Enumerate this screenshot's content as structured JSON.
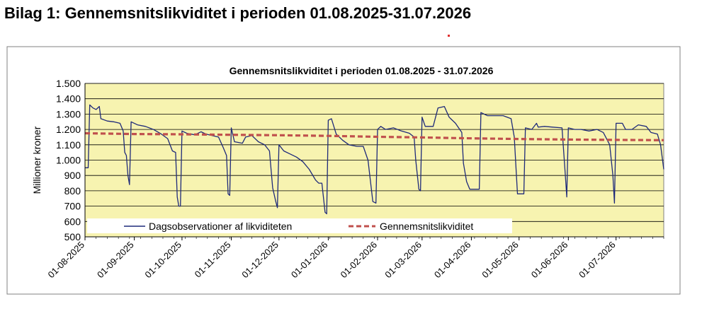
{
  "page": {
    "heading": "Bilag 1: Gennemsnitslikviditet i perioden 01.08.2025-31.07.2026"
  },
  "colors": {
    "plot_background": "#f7f3b0",
    "daily_line": "#1f2a7a",
    "average_line": "#c0504d",
    "frame": "#808080"
  },
  "chart_data": {
    "type": "line",
    "title": "Gennemsnitslikviditet i perioden 01.08.2025 - 31.07.2026",
    "xlabel": "",
    "ylabel": "Millioner kroner",
    "ylim": [
      500,
      1500
    ],
    "ytick_step": 100,
    "ytick_labels": [
      "500",
      "600",
      "700",
      "800",
      "900",
      "1.000",
      "1.100",
      "1.200",
      "1.300",
      "1.400",
      "1.500"
    ],
    "xlim": [
      "2025-08-01",
      "2026-07-31"
    ],
    "xtick_labels": [
      "01-08-2025",
      "01-09-2025",
      "01-10-2025",
      "01-11-2025",
      "01-12-2025",
      "01-01-2026",
      "01-02-2026",
      "01-03-2026",
      "01-04-2026",
      "01-05-2026",
      "01-06-2026",
      "01-07-2026"
    ],
    "xtick_dates": [
      "2025-08-01",
      "2025-09-01",
      "2025-10-01",
      "2025-11-01",
      "2025-12-01",
      "2026-01-01",
      "2026-02-01",
      "2026-03-01",
      "2026-04-01",
      "2026-05-01",
      "2026-06-01",
      "2026-07-01"
    ],
    "grid": "horizontal",
    "legend_position": "bottom",
    "series": [
      {
        "name": "Dagsobservationer af likviditeten",
        "style": "solid",
        "points": [
          [
            "2025-08-01",
            950
          ],
          [
            "2025-08-03",
            950
          ],
          [
            "2025-08-04",
            1360
          ],
          [
            "2025-08-06",
            1340
          ],
          [
            "2025-08-08",
            1330
          ],
          [
            "2025-08-10",
            1350
          ],
          [
            "2025-08-11",
            1270
          ],
          [
            "2025-08-15",
            1255
          ],
          [
            "2025-08-19",
            1250
          ],
          [
            "2025-08-23",
            1240
          ],
          [
            "2025-08-25",
            1190
          ],
          [
            "2025-08-26",
            1050
          ],
          [
            "2025-08-27",
            1030
          ],
          [
            "2025-08-28",
            900
          ],
          [
            "2025-08-29",
            840
          ],
          [
            "2025-08-30",
            1250
          ],
          [
            "2025-09-03",
            1230
          ],
          [
            "2025-09-08",
            1220
          ],
          [
            "2025-09-13",
            1200
          ],
          [
            "2025-09-18",
            1170
          ],
          [
            "2025-09-22",
            1140
          ],
          [
            "2025-09-25",
            1060
          ],
          [
            "2025-09-27",
            1050
          ],
          [
            "2025-09-28",
            760
          ],
          [
            "2025-09-29",
            700
          ],
          [
            "2025-09-30",
            700
          ],
          [
            "2025-10-01",
            1190
          ],
          [
            "2025-10-04",
            1175
          ],
          [
            "2025-10-09",
            1165
          ],
          [
            "2025-10-13",
            1185
          ],
          [
            "2025-10-16",
            1170
          ],
          [
            "2025-10-20",
            1160
          ],
          [
            "2025-10-24",
            1150
          ],
          [
            "2025-10-27",
            1080
          ],
          [
            "2025-10-29",
            1030
          ],
          [
            "2025-10-30",
            780
          ],
          [
            "2025-10-31",
            770
          ],
          [
            "2025-11-01",
            1210
          ],
          [
            "2025-11-03",
            1120
          ],
          [
            "2025-11-08",
            1110
          ],
          [
            "2025-11-10",
            1150
          ],
          [
            "2025-11-14",
            1160
          ],
          [
            "2025-11-18",
            1120
          ],
          [
            "2025-11-22",
            1100
          ],
          [
            "2025-11-25",
            1060
          ],
          [
            "2025-11-27",
            820
          ],
          [
            "2025-11-29",
            730
          ],
          [
            "2025-11-30",
            690
          ],
          [
            "2025-12-01",
            1100
          ],
          [
            "2025-12-04",
            1060
          ],
          [
            "2025-12-08",
            1040
          ],
          [
            "2025-12-12",
            1020
          ],
          [
            "2025-12-16",
            990
          ],
          [
            "2025-12-20",
            940
          ],
          [
            "2025-12-24",
            870
          ],
          [
            "2025-12-26",
            850
          ],
          [
            "2025-12-28",
            850
          ],
          [
            "2025-12-30",
            660
          ],
          [
            "2025-12-31",
            650
          ],
          [
            "2026-01-01",
            1260
          ],
          [
            "2026-01-03",
            1270
          ],
          [
            "2026-01-06",
            1170
          ],
          [
            "2026-01-10",
            1130
          ],
          [
            "2026-01-14",
            1100
          ],
          [
            "2026-01-19",
            1090
          ],
          [
            "2026-01-23",
            1090
          ],
          [
            "2026-01-26",
            1000
          ],
          [
            "2026-01-29",
            730
          ],
          [
            "2026-01-31",
            720
          ],
          [
            "2026-02-01",
            1200
          ],
          [
            "2026-02-03",
            1220
          ],
          [
            "2026-02-06",
            1200
          ],
          [
            "2026-02-11",
            1210
          ],
          [
            "2026-02-16",
            1190
          ],
          [
            "2026-02-21",
            1175
          ],
          [
            "2026-02-24",
            1150
          ],
          [
            "2026-02-25",
            1000
          ],
          [
            "2026-02-27",
            810
          ],
          [
            "2026-02-28",
            800
          ],
          [
            "2026-03-01",
            1280
          ],
          [
            "2026-03-03",
            1220
          ],
          [
            "2026-03-08",
            1220
          ],
          [
            "2026-03-11",
            1340
          ],
          [
            "2026-03-15",
            1350
          ],
          [
            "2026-03-18",
            1280
          ],
          [
            "2026-03-22",
            1240
          ],
          [
            "2026-03-26",
            1180
          ],
          [
            "2026-03-27",
            980
          ],
          [
            "2026-03-29",
            860
          ],
          [
            "2026-03-31",
            810
          ],
          [
            "2026-04-06",
            810
          ],
          [
            "2026-04-07",
            1310
          ],
          [
            "2026-04-11",
            1290
          ],
          [
            "2026-04-16",
            1290
          ],
          [
            "2026-04-21",
            1290
          ],
          [
            "2026-04-26",
            1270
          ],
          [
            "2026-04-28",
            1150
          ],
          [
            "2026-04-29",
            960
          ],
          [
            "2026-04-30",
            780
          ],
          [
            "2026-05-04",
            780
          ],
          [
            "2026-05-05",
            1210
          ],
          [
            "2026-05-09",
            1200
          ],
          [
            "2026-05-12",
            1240
          ],
          [
            "2026-05-13",
            1215
          ],
          [
            "2026-05-17",
            1220
          ],
          [
            "2026-05-22",
            1215
          ],
          [
            "2026-05-28",
            1210
          ],
          [
            "2026-05-30",
            920
          ],
          [
            "2026-05-31",
            760
          ],
          [
            "2026-06-01",
            1210
          ],
          [
            "2026-06-05",
            1200
          ],
          [
            "2026-06-09",
            1200
          ],
          [
            "2026-06-14",
            1190
          ],
          [
            "2026-06-19",
            1200
          ],
          [
            "2026-06-23",
            1180
          ],
          [
            "2026-06-27",
            1100
          ],
          [
            "2026-06-29",
            900
          ],
          [
            "2026-06-30",
            720
          ],
          [
            "2026-07-01",
            1240
          ],
          [
            "2026-07-05",
            1240
          ],
          [
            "2026-07-07",
            1200
          ],
          [
            "2026-07-11",
            1200
          ],
          [
            "2026-07-15",
            1230
          ],
          [
            "2026-07-20",
            1220
          ],
          [
            "2026-07-23",
            1180
          ],
          [
            "2026-07-27",
            1170
          ],
          [
            "2026-07-29",
            1100
          ],
          [
            "2026-07-31",
            940
          ]
        ]
      },
      {
        "name": "Gennemsnitslikviditet",
        "style": "dashed",
        "points": [
          [
            "2025-08-01",
            1175
          ],
          [
            "2025-09-01",
            1170
          ],
          [
            "2025-10-01",
            1168
          ],
          [
            "2025-11-01",
            1165
          ],
          [
            "2025-12-01",
            1162
          ],
          [
            "2026-01-01",
            1158
          ],
          [
            "2026-02-01",
            1152
          ],
          [
            "2026-03-01",
            1148
          ],
          [
            "2026-04-01",
            1142
          ],
          [
            "2026-05-01",
            1138
          ],
          [
            "2026-06-01",
            1134
          ],
          [
            "2026-07-01",
            1132
          ],
          [
            "2026-07-31",
            1130
          ]
        ]
      }
    ]
  }
}
